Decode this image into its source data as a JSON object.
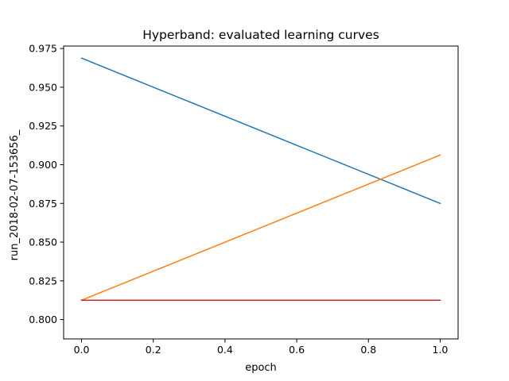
{
  "chart_data": {
    "type": "line",
    "title": "Hyperband: evaluated learning curves",
    "xlabel": "epoch",
    "ylabel": "run_2018-02-07-153656_",
    "xlim": [
      -0.05,
      1.05
    ],
    "ylim": [
      0.7875,
      0.9766
    ],
    "xticks": [
      0.0,
      0.2,
      0.4,
      0.6,
      0.8,
      1.0
    ],
    "xtick_labels": [
      "0.0",
      "0.2",
      "0.4",
      "0.6",
      "0.8",
      "1.0"
    ],
    "yticks": [
      0.8,
      0.825,
      0.85,
      0.875,
      0.9,
      0.925,
      0.95,
      0.975
    ],
    "ytick_labels": [
      "0.800",
      "0.825",
      "0.850",
      "0.875",
      "0.900",
      "0.925",
      "0.950",
      "0.975"
    ],
    "grid": false,
    "series": [
      {
        "color": "#1f77b4",
        "x": [
          0.0,
          1.0
        ],
        "y": [
          0.9688,
          0.875
        ]
      },
      {
        "color": "#ff7f0e",
        "x": [
          0.0,
          1.0
        ],
        "y": [
          0.8125,
          0.9062
        ]
      },
      {
        "color": "#2ca02c",
        "x": [
          0.0,
          1.0
        ],
        "y": [
          0.8125,
          0.8125
        ]
      },
      {
        "color": "#d62728",
        "x": [
          0.0,
          1.0
        ],
        "y": [
          0.8125,
          0.8125
        ]
      }
    ]
  }
}
